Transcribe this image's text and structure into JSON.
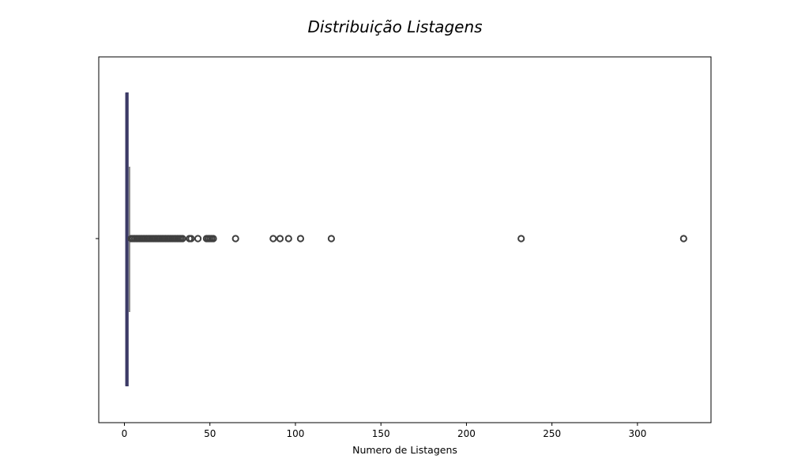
{
  "chart_data": {
    "type": "box",
    "title": "Distribuição Listagens",
    "xlabel": "Numero de Listagens",
    "ylabel": "",
    "xlim": [
      -15,
      343
    ],
    "xticks": [
      0,
      50,
      100,
      150,
      200,
      250,
      300
    ],
    "grid": false,
    "color": "#3c3a66",
    "box": {
      "min": 1,
      "q1": 1,
      "median": 1,
      "q3": 2,
      "max": 3
    },
    "outliers": [
      4,
      5,
      6,
      7,
      8,
      9,
      10,
      11,
      12,
      13,
      14,
      15,
      16,
      17,
      18,
      19,
      20,
      21,
      22,
      23,
      24,
      25,
      26,
      27,
      28,
      29,
      30,
      31,
      32,
      33,
      34,
      38,
      39,
      43,
      48,
      49,
      50,
      51,
      52,
      65,
      87,
      91,
      96,
      103,
      121,
      232,
      327
    ]
  }
}
